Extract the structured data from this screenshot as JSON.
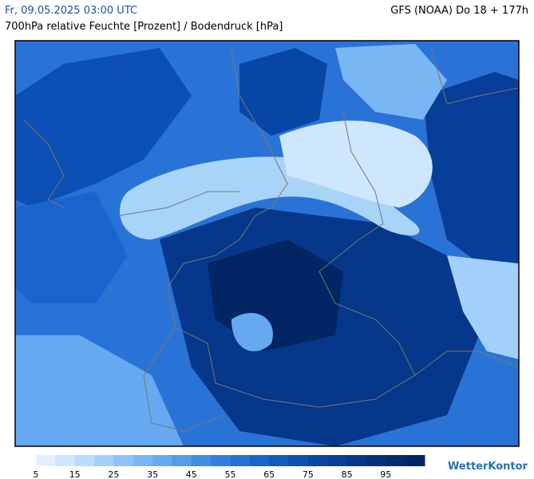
{
  "header": {
    "datetime": "Fr, 09.05.2025 03:00 UTC",
    "model": "GFS (NOAA) Do 18 + 177h",
    "subtitle": "700hPa relative Feuchte [Prozent] / Bodendruck [hPa]"
  },
  "legend": {
    "colors": [
      "#e3f0ff",
      "#cfe6ff",
      "#b9dbff",
      "#a3cffc",
      "#8ec3f8",
      "#79b6f4",
      "#66a9f0",
      "#559cec",
      "#438de6",
      "#337ee0",
      "#2570d8",
      "#1a64cf",
      "#1259c2",
      "#0c4fb5",
      "#0846a6",
      "#063e98",
      "#05378a",
      "#04317d",
      "#032b70",
      "#022563"
    ],
    "labels": [
      5,
      15,
      25,
      35,
      45,
      55,
      65,
      75,
      85,
      95
    ]
  },
  "logo": "WetterKontor"
}
